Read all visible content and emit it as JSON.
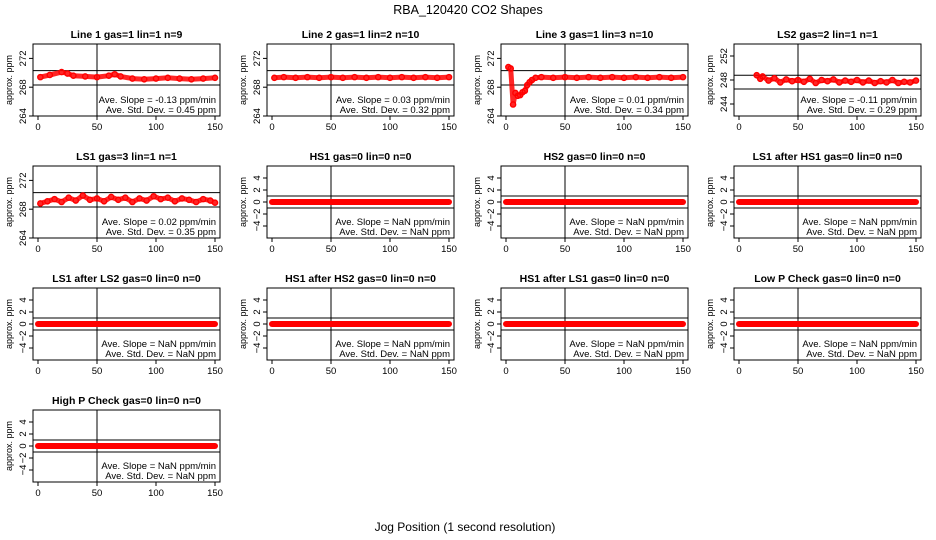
{
  "figure": {
    "title": "RBA_120420  CO2 Shapes",
    "xlabel": "Jog Position (1 second resolution)"
  },
  "chart_data": [
    {
      "type": "scatter",
      "title": "Line 1 gas=1 lin=1 n=9",
      "ylabel": "approx. ppm",
      "xlim": [
        0,
        150
      ],
      "ylim": [
        264,
        274
      ],
      "xticks": [
        0,
        50,
        100,
        150
      ],
      "yticks": [
        264,
        268,
        272
      ],
      "hlines": [
        268.3,
        270.3
      ],
      "vline": 50,
      "x": [
        2,
        10,
        20,
        25,
        30,
        40,
        50,
        60,
        65,
        70,
        80,
        90,
        100,
        110,
        120,
        130,
        140,
        150
      ],
      "y": [
        269.4,
        269.7,
        270.1,
        269.9,
        269.6,
        269.5,
        269.4,
        269.6,
        269.8,
        269.5,
        269.2,
        269.1,
        269.2,
        269.3,
        269.2,
        269.1,
        269.2,
        269.3
      ],
      "slope": "Ave. Slope =  -0.13  ppm/min",
      "stddev": "Ave. Std. Dev. =  0.45  ppm"
    },
    {
      "type": "scatter",
      "title": "Line 2 gas=1 lin=2 n=10",
      "ylabel": "approx. ppm",
      "xlim": [
        0,
        150
      ],
      "ylim": [
        264,
        274
      ],
      "xticks": [
        0,
        50,
        100,
        150
      ],
      "yticks": [
        264,
        268,
        272
      ],
      "hlines": [
        268.3,
        270.3
      ],
      "vline": 50,
      "x": [
        2,
        10,
        20,
        30,
        40,
        50,
        60,
        70,
        80,
        90,
        100,
        110,
        120,
        130,
        140,
        150
      ],
      "y": [
        269.3,
        269.4,
        269.3,
        269.4,
        269.3,
        269.4,
        269.3,
        269.4,
        269.3,
        269.4,
        269.3,
        269.4,
        269.3,
        269.4,
        269.3,
        269.4
      ],
      "slope": "Ave. Slope =  0.03  ppm/min",
      "stddev": "Ave. Std. Dev. =  0.32  ppm"
    },
    {
      "type": "scatter",
      "title": "Line 3 gas=1 lin=3 n=10",
      "ylabel": "approx. ppm",
      "xlim": [
        0,
        150
      ],
      "ylim": [
        264,
        274
      ],
      "xticks": [
        0,
        50,
        100,
        150
      ],
      "yticks": [
        264,
        268,
        272
      ],
      "hlines": [
        268.3,
        270.3
      ],
      "vline": 50,
      "x": [
        2,
        4,
        6,
        8,
        10,
        12,
        14,
        16,
        18,
        20,
        22,
        25,
        30,
        40,
        50,
        60,
        70,
        80,
        90,
        100,
        110,
        120,
        130,
        140,
        150
      ],
      "y": [
        270.8,
        270.6,
        265.6,
        267.2,
        266.8,
        266.9,
        267.3,
        267.5,
        268.3,
        268.7,
        269.0,
        269.3,
        269.4,
        269.3,
        269.4,
        269.3,
        269.4,
        269.3,
        269.4,
        269.3,
        269.4,
        269.3,
        269.4,
        269.3,
        269.4
      ],
      "slope": "Ave. Slope =  0.01  ppm/min",
      "stddev": "Ave. Std. Dev. =  0.34  ppm"
    },
    {
      "type": "scatter",
      "title": "LS2 gas=2 lin=1 n=1",
      "ylabel": "approx. ppm",
      "xlim": [
        0,
        150
      ],
      "ylim": [
        242,
        254
      ],
      "xticks": [
        0,
        50,
        100,
        150
      ],
      "yticks": [
        244,
        248,
        252
      ],
      "hlines": [
        246.5,
        248.8
      ],
      "vline": 50,
      "x": [
        15,
        18,
        20,
        25,
        30,
        35,
        40,
        45,
        50,
        55,
        60,
        65,
        70,
        75,
        80,
        85,
        90,
        95,
        100,
        105,
        110,
        115,
        120,
        125,
        130,
        135,
        140,
        145,
        150
      ],
      "y": [
        248.8,
        248.2,
        248.6,
        247.9,
        248.3,
        247.6,
        248.1,
        247.8,
        248.0,
        247.7,
        248.2,
        247.5,
        248.0,
        247.8,
        248.1,
        247.6,
        247.9,
        247.7,
        248.0,
        247.6,
        247.9,
        247.5,
        247.8,
        247.6,
        248.0,
        247.5,
        247.7,
        247.6,
        247.9
      ],
      "slope": "Ave. Slope =  -0.11  ppm/min",
      "stddev": "Ave. Std. Dev. =  0.29  ppm"
    },
    {
      "type": "scatter",
      "title": "LS1 gas=3 lin=1 n=1",
      "ylabel": "approx. ppm",
      "xlim": [
        0,
        150
      ],
      "ylim": [
        264,
        274
      ],
      "xticks": [
        0,
        50,
        100,
        150
      ],
      "yticks": [
        264,
        268,
        272
      ],
      "hlines": [
        268.3,
        270.3
      ],
      "vline": 50,
      "x": [
        2,
        8,
        14,
        20,
        26,
        32,
        38,
        44,
        50,
        56,
        62,
        68,
        74,
        80,
        86,
        92,
        98,
        104,
        110,
        116,
        122,
        128,
        134,
        140,
        146,
        150
      ],
      "y": [
        268.8,
        269.1,
        269.4,
        269.0,
        269.6,
        269.2,
        269.9,
        269.3,
        269.5,
        269.1,
        269.7,
        269.3,
        269.6,
        269.0,
        269.5,
        269.2,
        269.8,
        269.4,
        269.6,
        269.1,
        269.5,
        269.3,
        269.0,
        269.4,
        269.2,
        268.9
      ],
      "slope": "Ave. Slope =  0.02  ppm/min",
      "stddev": "Ave. Std. Dev. =  0.35  ppm"
    },
    {
      "type": "scatter",
      "title": "HS1 gas=0 lin=0 n=0",
      "ylabel": "approx. ppm",
      "xlim": [
        0,
        150
      ],
      "ylim": [
        -6,
        6
      ],
      "xticks": [
        0,
        50,
        100,
        150
      ],
      "yticks": [
        -4,
        -2,
        0,
        2,
        4
      ],
      "hlines": [
        -1,
        1
      ],
      "vline": 50,
      "x": [
        0,
        150
      ],
      "y": [
        0,
        0
      ],
      "slope": "Ave. Slope =  NaN  ppm/min",
      "stddev": "Ave. Std. Dev. =  NaN  ppm"
    },
    {
      "type": "scatter",
      "title": "HS2 gas=0 lin=0 n=0",
      "ylabel": "approx. ppm",
      "xlim": [
        0,
        150
      ],
      "ylim": [
        -6,
        6
      ],
      "xticks": [
        0,
        50,
        100,
        150
      ],
      "yticks": [
        -4,
        -2,
        0,
        2,
        4
      ],
      "hlines": [
        -1,
        1
      ],
      "vline": 50,
      "x": [
        0,
        150
      ],
      "y": [
        0,
        0
      ],
      "slope": "Ave. Slope =  NaN  ppm/min",
      "stddev": "Ave. Std. Dev. =  NaN  ppm"
    },
    {
      "type": "scatter",
      "title": "LS1 after HS1 gas=0 lin=0 n=0",
      "ylabel": "approx. ppm",
      "xlim": [
        0,
        150
      ],
      "ylim": [
        -6,
        6
      ],
      "xticks": [
        0,
        50,
        100,
        150
      ],
      "yticks": [
        -4,
        -2,
        0,
        2,
        4
      ],
      "hlines": [
        -1,
        1
      ],
      "vline": 50,
      "x": [
        0,
        150
      ],
      "y": [
        0,
        0
      ],
      "slope": "Ave. Slope =  NaN  ppm/min",
      "stddev": "Ave. Std. Dev. =  NaN  ppm"
    },
    {
      "type": "scatter",
      "title": "LS1 after LS2 gas=0 lin=0 n=0",
      "ylabel": "approx. ppm",
      "xlim": [
        0,
        150
      ],
      "ylim": [
        -6,
        6
      ],
      "xticks": [
        0,
        50,
        100,
        150
      ],
      "yticks": [
        -4,
        -2,
        0,
        2,
        4
      ],
      "hlines": [
        -1,
        1
      ],
      "vline": 50,
      "x": [
        0,
        150
      ],
      "y": [
        0,
        0
      ],
      "slope": "Ave. Slope =  NaN  ppm/min",
      "stddev": "Ave. Std. Dev. =  NaN  ppm"
    },
    {
      "type": "scatter",
      "title": "HS1 after HS2 gas=0 lin=0 n=0",
      "ylabel": "approx. ppm",
      "xlim": [
        0,
        150
      ],
      "ylim": [
        -6,
        6
      ],
      "xticks": [
        0,
        50,
        100,
        150
      ],
      "yticks": [
        -4,
        -2,
        0,
        2,
        4
      ],
      "hlines": [
        -1,
        1
      ],
      "vline": 50,
      "x": [
        0,
        150
      ],
      "y": [
        0,
        0
      ],
      "slope": "Ave. Slope =  NaN  ppm/min",
      "stddev": "Ave. Std. Dev. =  NaN  ppm"
    },
    {
      "type": "scatter",
      "title": "HS1 after LS1 gas=0 lin=0 n=0",
      "ylabel": "approx. ppm",
      "xlim": [
        0,
        150
      ],
      "ylim": [
        -6,
        6
      ],
      "xticks": [
        0,
        50,
        100,
        150
      ],
      "yticks": [
        -4,
        -2,
        0,
        2,
        4
      ],
      "hlines": [
        -1,
        1
      ],
      "vline": 50,
      "x": [
        0,
        150
      ],
      "y": [
        0,
        0
      ],
      "slope": "Ave. Slope =  NaN  ppm/min",
      "stddev": "Ave. Std. Dev. =  NaN  ppm"
    },
    {
      "type": "scatter",
      "title": "Low P Check gas=0 lin=0 n=0",
      "ylabel": "approx. ppm",
      "xlim": [
        0,
        150
      ],
      "ylim": [
        -6,
        6
      ],
      "xticks": [
        0,
        50,
        100,
        150
      ],
      "yticks": [
        -4,
        -2,
        0,
        2,
        4
      ],
      "hlines": [
        -1,
        1
      ],
      "vline": 50,
      "x": [
        0,
        150
      ],
      "y": [
        0,
        0
      ],
      "slope": "Ave. Slope =  NaN  ppm/min",
      "stddev": "Ave. Std. Dev. =  NaN  ppm"
    },
    {
      "type": "scatter",
      "title": "High P Check gas=0 lin=0 n=0",
      "ylabel": "approx. ppm",
      "xlim": [
        0,
        150
      ],
      "ylim": [
        -6,
        6
      ],
      "xticks": [
        0,
        50,
        100,
        150
      ],
      "yticks": [
        -4,
        -2,
        0,
        2,
        4
      ],
      "hlines": [
        -1,
        1
      ],
      "vline": 50,
      "x": [
        0,
        150
      ],
      "y": [
        0,
        0
      ],
      "slope": "Ave. Slope =  NaN  ppm/min",
      "stddev": "Ave. Std. Dev. =  NaN  ppm"
    }
  ]
}
